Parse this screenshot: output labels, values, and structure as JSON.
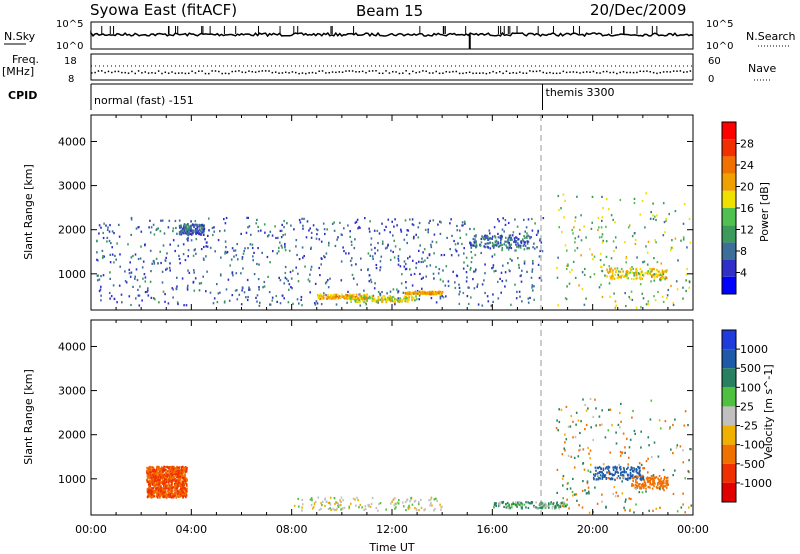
{
  "header": {
    "station": "Syowa East (fitACF)",
    "beam": "Beam 15",
    "date": "20/Dec/2009"
  },
  "status": {
    "nsky_label": "N.Sky",
    "nsky_ticks": [
      "10^5",
      "10^0"
    ],
    "nsearch_label": "N.Search",
    "nsearch_ticks": [
      "10^5",
      "10^0"
    ],
    "freq_label": "Freq.",
    "freq_unit": "[MHz]",
    "freq_ticks": [
      "18",
      "8"
    ],
    "nave_label": "Nave",
    "nave_ticks": [
      "60",
      "0"
    ],
    "cpid_label": "CPID",
    "modes": [
      {
        "name": "normal (fast) -151",
        "start_hour": 0
      },
      {
        "name": "themis 3300",
        "start_hour": 18
      }
    ]
  },
  "chart_data": [
    {
      "type": "heatmap",
      "name": "power",
      "ylabel": "Slant Range [km]",
      "xlabel": "Time UT",
      "x_range_hours": [
        0,
        24
      ],
      "x_ticks": [
        "00:00",
        "04:00",
        "08:00",
        "12:00",
        "16:00",
        "20:00",
        "00:00"
      ],
      "ylim": [
        180,
        4600
      ],
      "y_ticks": [
        1000,
        2000,
        3000,
        4000
      ],
      "colorbar": {
        "label": "Power [dB]",
        "ticks": [
          "4",
          "8",
          "12",
          "16",
          "20",
          "24",
          "28"
        ],
        "colors": [
          "#0000ff",
          "#3030c8",
          "#3c6e9a",
          "#3c9a5a",
          "#50c050",
          "#f0e000",
          "#f0a000",
          "#f07000",
          "#f03000",
          "#ff0000"
        ]
      },
      "features": [
        {
          "t0": 0.2,
          "t1": 18,
          "r0": 300,
          "r1": 2300,
          "dB": 6
        },
        {
          "t0": 3.5,
          "t1": 4.5,
          "r0": 1900,
          "r1": 2150,
          "dB": 6
        },
        {
          "t0": 9.0,
          "t1": 11.0,
          "r0": 450,
          "r1": 560,
          "dB": 20
        },
        {
          "t0": 10.2,
          "t1": 13.0,
          "r0": 380,
          "r1": 520,
          "dB": 16
        },
        {
          "t0": 12.5,
          "t1": 14.0,
          "r0": 560,
          "r1": 620,
          "dB": 20
        },
        {
          "t0": 15.0,
          "t1": 17.5,
          "r0": 1600,
          "r1": 1900,
          "dB": 6
        },
        {
          "t0": 20.5,
          "t1": 23.0,
          "r0": 900,
          "r1": 1150,
          "dB": 18
        }
      ]
    },
    {
      "type": "heatmap",
      "name": "velocity",
      "ylabel": "Slant Range [km]",
      "xlabel": "Time UT",
      "x_range_hours": [
        0,
        24
      ],
      "x_ticks": [
        "00:00",
        "04:00",
        "08:00",
        "12:00",
        "16:00",
        "20:00",
        "00:00"
      ],
      "ylim": [
        180,
        4600
      ],
      "y_ticks": [
        1000,
        2000,
        3000,
        4000
      ],
      "colorbar": {
        "label": "Velocity [m s^-1]",
        "ticks": [
          "1000",
          "500",
          "100",
          "25",
          "-25",
          "-100",
          "-500",
          "-1000"
        ],
        "colors": [
          "#1e3cdc",
          "#1e5aa8",
          "#288060",
          "#50c040",
          "#c0c0c0",
          "#f0b000",
          "#f07000",
          "#f03000",
          "#e00000"
        ]
      },
      "features": [
        {
          "t0": 2.2,
          "t1": 3.8,
          "r0": 600,
          "r1": 1300,
          "v": -400
        },
        {
          "t0": 8.0,
          "t1": 14.0,
          "r0": 300,
          "r1": 600,
          "v": 0
        },
        {
          "t0": 16.0,
          "t1": 19.0,
          "r0": 350,
          "r1": 500,
          "v": 60
        },
        {
          "t0": 21.5,
          "t1": 23.0,
          "r0": 800,
          "r1": 1100,
          "v": -300
        },
        {
          "t0": 20.0,
          "t1": 22.0,
          "r0": 1000,
          "r1": 1300,
          "v": 600
        }
      ]
    }
  ]
}
